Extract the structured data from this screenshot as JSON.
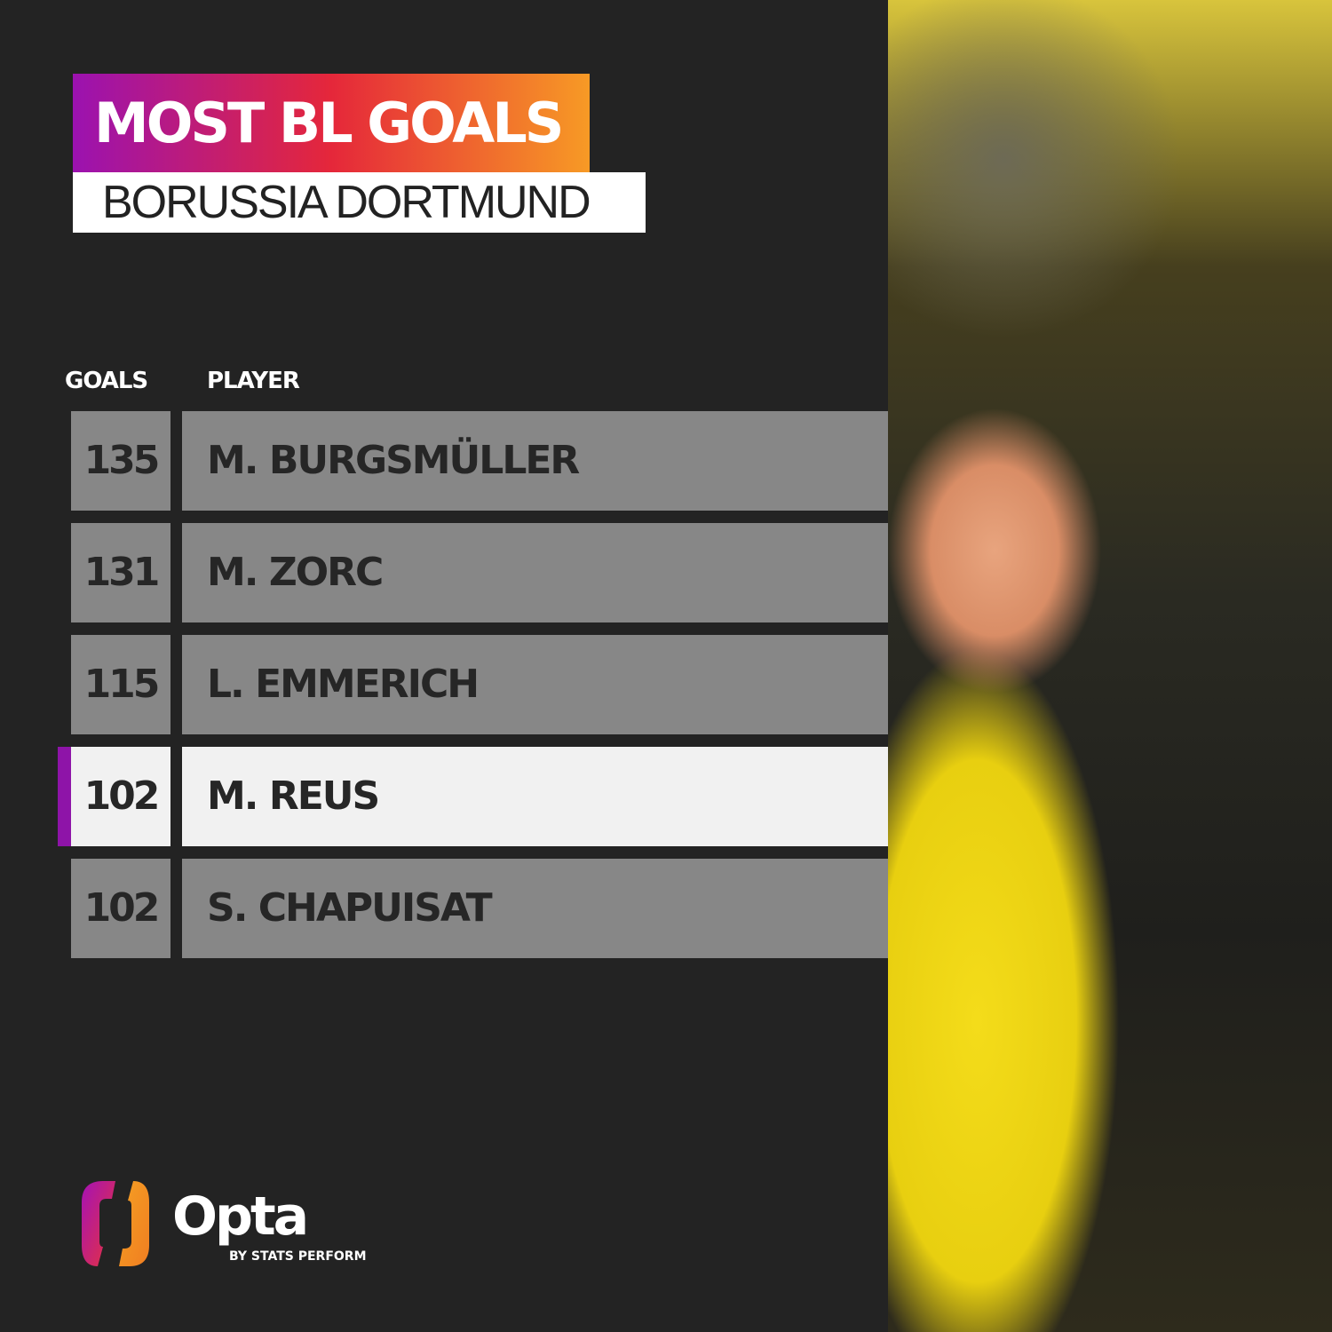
{
  "title": "MOST BL GOALS",
  "subtitle": "BORUSSIA DORTMUND",
  "headers": {
    "goals": "GOALS",
    "player": "PLAYER"
  },
  "rows": [
    {
      "goals": "135",
      "player": "M. BURGSMÜLLER"
    },
    {
      "goals": "131",
      "player": "M. ZORC"
    },
    {
      "goals": "115",
      "player": "L. EMMERICH"
    },
    {
      "goals": "102",
      "player": "M. REUS",
      "highlighted": true
    },
    {
      "goals": "102",
      "player": "S. CHAPUISAT"
    }
  ],
  "colors": {
    "highlight": "#8e14a8",
    "row": "#878787",
    "highlight_row": "#f1f1f1",
    "background": "#232323"
  },
  "logo": {
    "name": "Opta",
    "tagline": "BY STATS PERFORM"
  }
}
